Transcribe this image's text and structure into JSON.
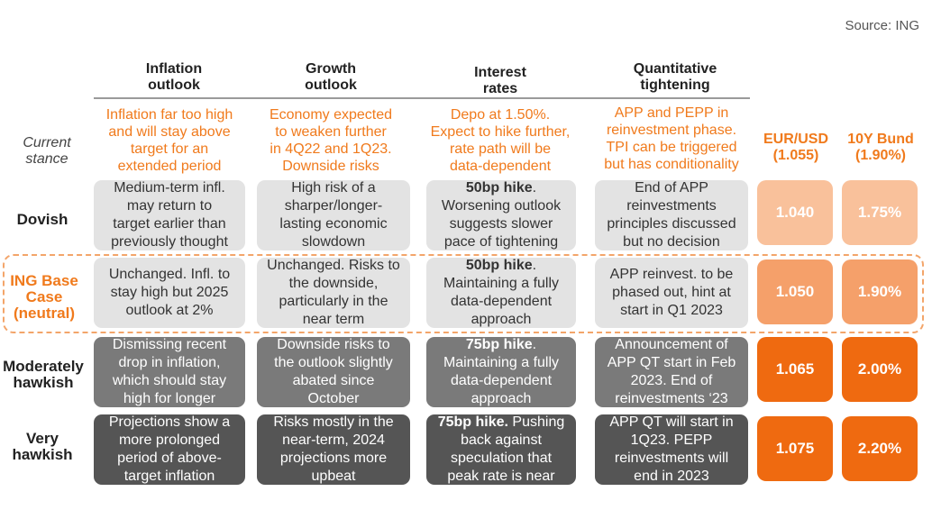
{
  "source": "Source: ING",
  "columns": [
    {
      "line1": "Inflation",
      "line2": "outlook"
    },
    {
      "line1": "Growth",
      "line2": "outlook"
    },
    {
      "line1": "Interest",
      "line2": "rates"
    },
    {
      "line1": "Quantitative",
      "line2": "tightening"
    }
  ],
  "current_stance_label": {
    "line1": "Current",
    "line2": "stance"
  },
  "current_stance": [
    [
      "Inflation far too high",
      "and will stay above",
      "target for an",
      "extended period"
    ],
    [
      "Economy expected",
      "to weaken further",
      "in 4Q22 and 1Q23.",
      "Downside risks"
    ],
    [
      "Depo at 1.50%.",
      "Expect to hike further,",
      "rate path will be",
      "data-dependent"
    ],
    [
      "APP and PEPP in",
      "reinvestment phase.",
      "TPI can be triggered",
      "but has conditionality"
    ]
  ],
  "market_headers": [
    {
      "line1": "EUR/USD",
      "line2": "(1.055)"
    },
    {
      "line1": "10Y Bund",
      "line2": "(1.90%)"
    }
  ],
  "rows": [
    {
      "label": [
        "Dovish"
      ],
      "cells": [
        {
          "bold": "",
          "lines": [
            "Medium-term infl.",
            "may return to",
            "target earlier than",
            "previously thought"
          ]
        },
        {
          "bold": "",
          "lines": [
            "High risk of a",
            "sharper/longer-",
            "lasting economic",
            "slowdown"
          ]
        },
        {
          "bold": "50bp hike",
          "lines": [
            ".",
            "Worsening outlook",
            "suggests slower",
            "pace of tightening"
          ]
        },
        {
          "bold": "",
          "lines": [
            "End of APP",
            "reinvestments",
            "principles discussed",
            "but no decision"
          ]
        }
      ],
      "eurusd": "1.040",
      "bund": "1.75%"
    },
    {
      "label": [
        "ING Base",
        "Case",
        "(neutral)"
      ],
      "cells": [
        {
          "bold": "",
          "lines": [
            "Unchanged. Infl. to",
            "stay high but 2025",
            "outlook at 2%"
          ]
        },
        {
          "bold": "",
          "lines": [
            "Unchanged. Risks to",
            "the downside,",
            "particularly in the",
            "near term"
          ]
        },
        {
          "bold": "50bp hike",
          "lines": [
            ".",
            "Maintaining a fully",
            "data-dependent",
            "approach"
          ]
        },
        {
          "bold": "",
          "lines": [
            "APP reinvest. to be",
            "phased out, hint at",
            "start in Q1 2023"
          ]
        }
      ],
      "eurusd": "1.050",
      "bund": "1.90%"
    },
    {
      "label": [
        "Moderately",
        "hawkish"
      ],
      "cells": [
        {
          "bold": "",
          "lines": [
            "Dismissing recent",
            "drop in inflation,",
            "which should stay",
            "high for longer"
          ]
        },
        {
          "bold": "",
          "lines": [
            "Downside risks to",
            "the outlook slightly",
            "abated since",
            "October"
          ]
        },
        {
          "bold": "75bp hike",
          "lines": [
            ".",
            "Maintaining a fully",
            "data-dependent",
            "approach"
          ]
        },
        {
          "bold": "",
          "lines": [
            "Announcement of",
            "APP QT start in Feb",
            "2023.  End of",
            "reinvestments ‘23"
          ]
        }
      ],
      "eurusd": "1.065",
      "bund": "2.00%"
    },
    {
      "label": [
        "Very",
        "hawkish"
      ],
      "cells": [
        {
          "bold": "",
          "lines": [
            "Projections show a",
            "more prolonged",
            "period of above-",
            "target inflation"
          ]
        },
        {
          "bold": "",
          "lines": [
            "Risks mostly in the",
            "near-term, 2024",
            "projections more",
            "upbeat"
          ]
        },
        {
          "bold": "75bp hike.",
          "lines": [
            " Pushing",
            "back against",
            "speculation that",
            "peak rate is near"
          ]
        },
        {
          "bold": "",
          "lines": [
            "APP QT will start in",
            "1Q23. PEPP",
            "reinvestments will",
            "end in 2023"
          ]
        }
      ],
      "eurusd": "1.075",
      "bund": "2.20%"
    }
  ]
}
